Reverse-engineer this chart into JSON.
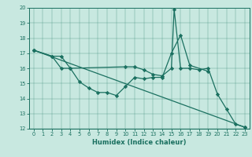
{
  "xlabel": "Humidex (Indice chaleur)",
  "ylabel": "",
  "xlim": [
    -0.5,
    23.5
  ],
  "ylim": [
    12,
    20
  ],
  "xticks": [
    0,
    1,
    2,
    3,
    4,
    5,
    6,
    7,
    8,
    9,
    10,
    11,
    12,
    13,
    14,
    15,
    16,
    17,
    18,
    19,
    20,
    21,
    22,
    23
  ],
  "yticks": [
    12,
    13,
    14,
    15,
    16,
    17,
    18,
    19,
    20
  ],
  "bg_color": "#c8e8e0",
  "line_color": "#1a7060",
  "lines": [
    {
      "x": [
        0,
        2,
        3,
        4,
        5,
        6,
        7,
        8,
        9,
        10,
        11,
        12,
        13,
        14,
        15,
        16,
        17,
        19
      ],
      "y": [
        17.2,
        16.8,
        16.8,
        16.0,
        15.1,
        14.7,
        14.4,
        14.4,
        14.2,
        14.8,
        15.4,
        15.3,
        15.4,
        15.4,
        17.0,
        18.2,
        16.2,
        15.8
      ]
    },
    {
      "x": [
        0,
        2,
        3,
        4,
        10,
        11,
        12,
        13,
        14,
        15,
        15.3,
        16,
        17,
        18,
        19,
        20,
        21,
        22,
        23
      ],
      "y": [
        17.2,
        16.8,
        16.0,
        16.0,
        16.1,
        16.1,
        15.9,
        15.6,
        15.5,
        16.0,
        19.9,
        16.0,
        16.0,
        15.9,
        16.0,
        14.3,
        13.3,
        12.3,
        12.1
      ]
    },
    {
      "x": [
        0,
        23
      ],
      "y": [
        17.2,
        12.1
      ]
    }
  ]
}
